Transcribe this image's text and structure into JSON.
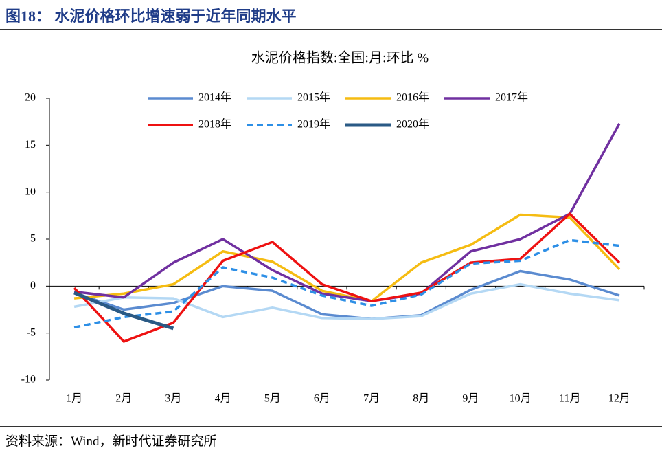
{
  "header": {
    "title": "图18：  水泥价格环比增速弱于近年同期水平"
  },
  "footer": {
    "source": "资料来源：Wind，新时代证券研究所"
  },
  "chart_data": {
    "type": "line",
    "title": "水泥价格指数:全国:月:环比 %",
    "categories": [
      "1月",
      "2月",
      "3月",
      "4月",
      "5月",
      "6月",
      "7月",
      "8月",
      "9月",
      "10月",
      "11月",
      "12月"
    ],
    "series": [
      {
        "name": "2014年",
        "color": "#5b8bd0",
        "values": [
          -0.7,
          -2.5,
          -1.8,
          0,
          -0.5,
          -3.0,
          -3.5,
          -3.1,
          -0.4,
          1.6,
          0.7,
          -1.0
        ]
      },
      {
        "name": "2015年",
        "color": "#b4d8f4",
        "values": [
          -2.2,
          -1.2,
          -1.3,
          -3.3,
          -2.3,
          -3.4,
          -3.5,
          -3.2,
          -0.8,
          0.2,
          -0.8,
          -1.5
        ]
      },
      {
        "name": "2016年",
        "color": "#f5bc12",
        "values": [
          -1.3,
          -0.8,
          0.2,
          3.7,
          2.6,
          -0.5,
          -1.6,
          2.5,
          4.4,
          7.6,
          7.3,
          1.8
        ]
      },
      {
        "name": "2017年",
        "color": "#7030a0",
        "values": [
          -0.6,
          -1.2,
          2.5,
          5.0,
          1.7,
          -0.8,
          -1.6,
          -0.8,
          3.7,
          5.0,
          7.7,
          17.3
        ]
      },
      {
        "name": "2018年",
        "color": "#ee1111",
        "values": [
          -0.2,
          -5.9,
          -3.9,
          2.7,
          4.7,
          0.2,
          -1.6,
          -0.7,
          2.5,
          2.9,
          7.7,
          2.5
        ]
      },
      {
        "name": "2019年",
        "color": "#2d8fe6",
        "dashed": true,
        "values": [
          -4.4,
          -3.3,
          -2.7,
          2.0,
          0.9,
          -1.0,
          -2.1,
          -0.9,
          2.4,
          2.7,
          4.9,
          4.3
        ]
      },
      {
        "name": "2020年",
        "color": "#2a5a85",
        "values": [
          -0.7,
          -2.9,
          -4.5,
          null,
          null,
          null,
          null,
          null,
          null,
          null,
          null,
          null
        ]
      }
    ],
    "ylim": [
      -10,
      20
    ],
    "yticks": [
      -10,
      -5,
      0,
      5,
      10,
      15,
      20
    ],
    "legend": "top"
  }
}
